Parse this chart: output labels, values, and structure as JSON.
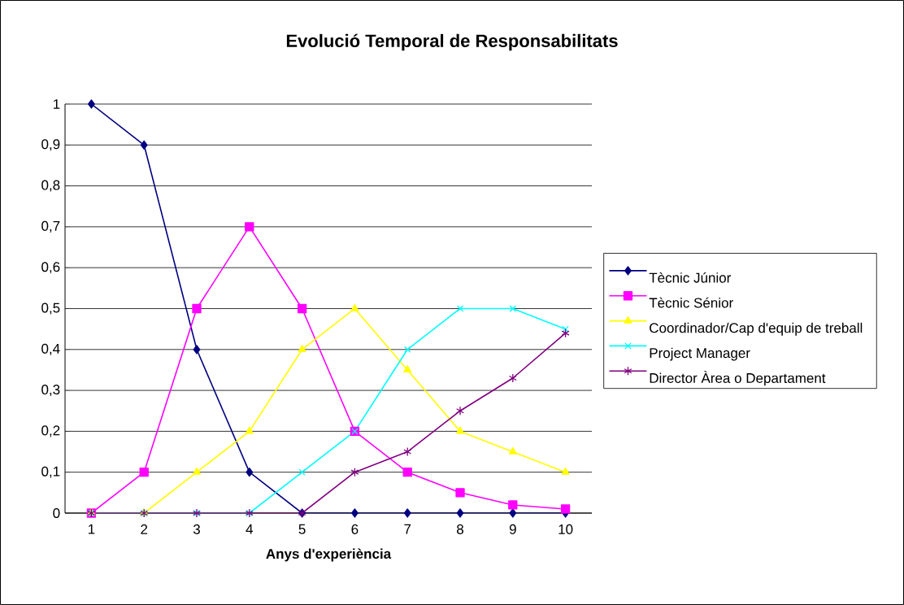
{
  "chart_data": {
    "type": "line",
    "title": "Evolució Temporal de Responsabilitats",
    "xlabel": "Anys d'experiència",
    "categories": [
      "1",
      "2",
      "3",
      "4",
      "5",
      "6",
      "7",
      "8",
      "9",
      "10"
    ],
    "ylim": [
      0,
      1
    ],
    "yticks": [
      0,
      {
        "value": 0.1,
        "label": "0,1"
      },
      {
        "value": 0.2,
        "label": "0,2"
      },
      {
        "value": 0.3,
        "label": "0,3"
      },
      {
        "value": 0.4,
        "label": "0,4"
      },
      {
        "value": 0.5,
        "label": "0,5"
      },
      {
        "value": 0.6,
        "label": "0,6"
      },
      {
        "value": 0.7,
        "label": "0,7"
      },
      {
        "value": 0.8,
        "label": "0,8"
      },
      {
        "value": 0.9,
        "label": "0,9"
      },
      1
    ],
    "grid": "y",
    "legend": "right",
    "line_style": "solid",
    "series": [
      {
        "name": "Tècnic Júnior",
        "color": "#000080",
        "marker": "diamond",
        "values": [
          1,
          0.9,
          0.4,
          0.1,
          0,
          0,
          0,
          0,
          0,
          0
        ]
      },
      {
        "name": "Tècnic Sénior",
        "color": "#ff00ff",
        "marker": "square",
        "values": [
          0,
          0.1,
          0.5,
          0.7,
          0.5,
          0.2,
          0.1,
          0.05,
          0.02,
          0.01
        ]
      },
      {
        "name": "Coordinador/Cap d'equip de treball",
        "color": "#ffff00",
        "marker": "triangle",
        "values": [
          0,
          0,
          0.1,
          0.2,
          0.4,
          0.5,
          0.35,
          0.2,
          0.15,
          0.1
        ]
      },
      {
        "name": "Project Manager",
        "color": "#00ffff",
        "marker": "cross",
        "values": [
          0,
          0,
          0,
          0,
          0.1,
          0.2,
          0.4,
          0.5,
          0.5,
          0.45
        ]
      },
      {
        "name": "Director Àrea o Departament",
        "color": "#800080",
        "marker": "cross",
        "values": [
          0,
          0,
          0,
          0,
          0,
          0.1,
          0.15,
          0.25,
          0.33,
          0.44
        ]
      }
    ]
  }
}
